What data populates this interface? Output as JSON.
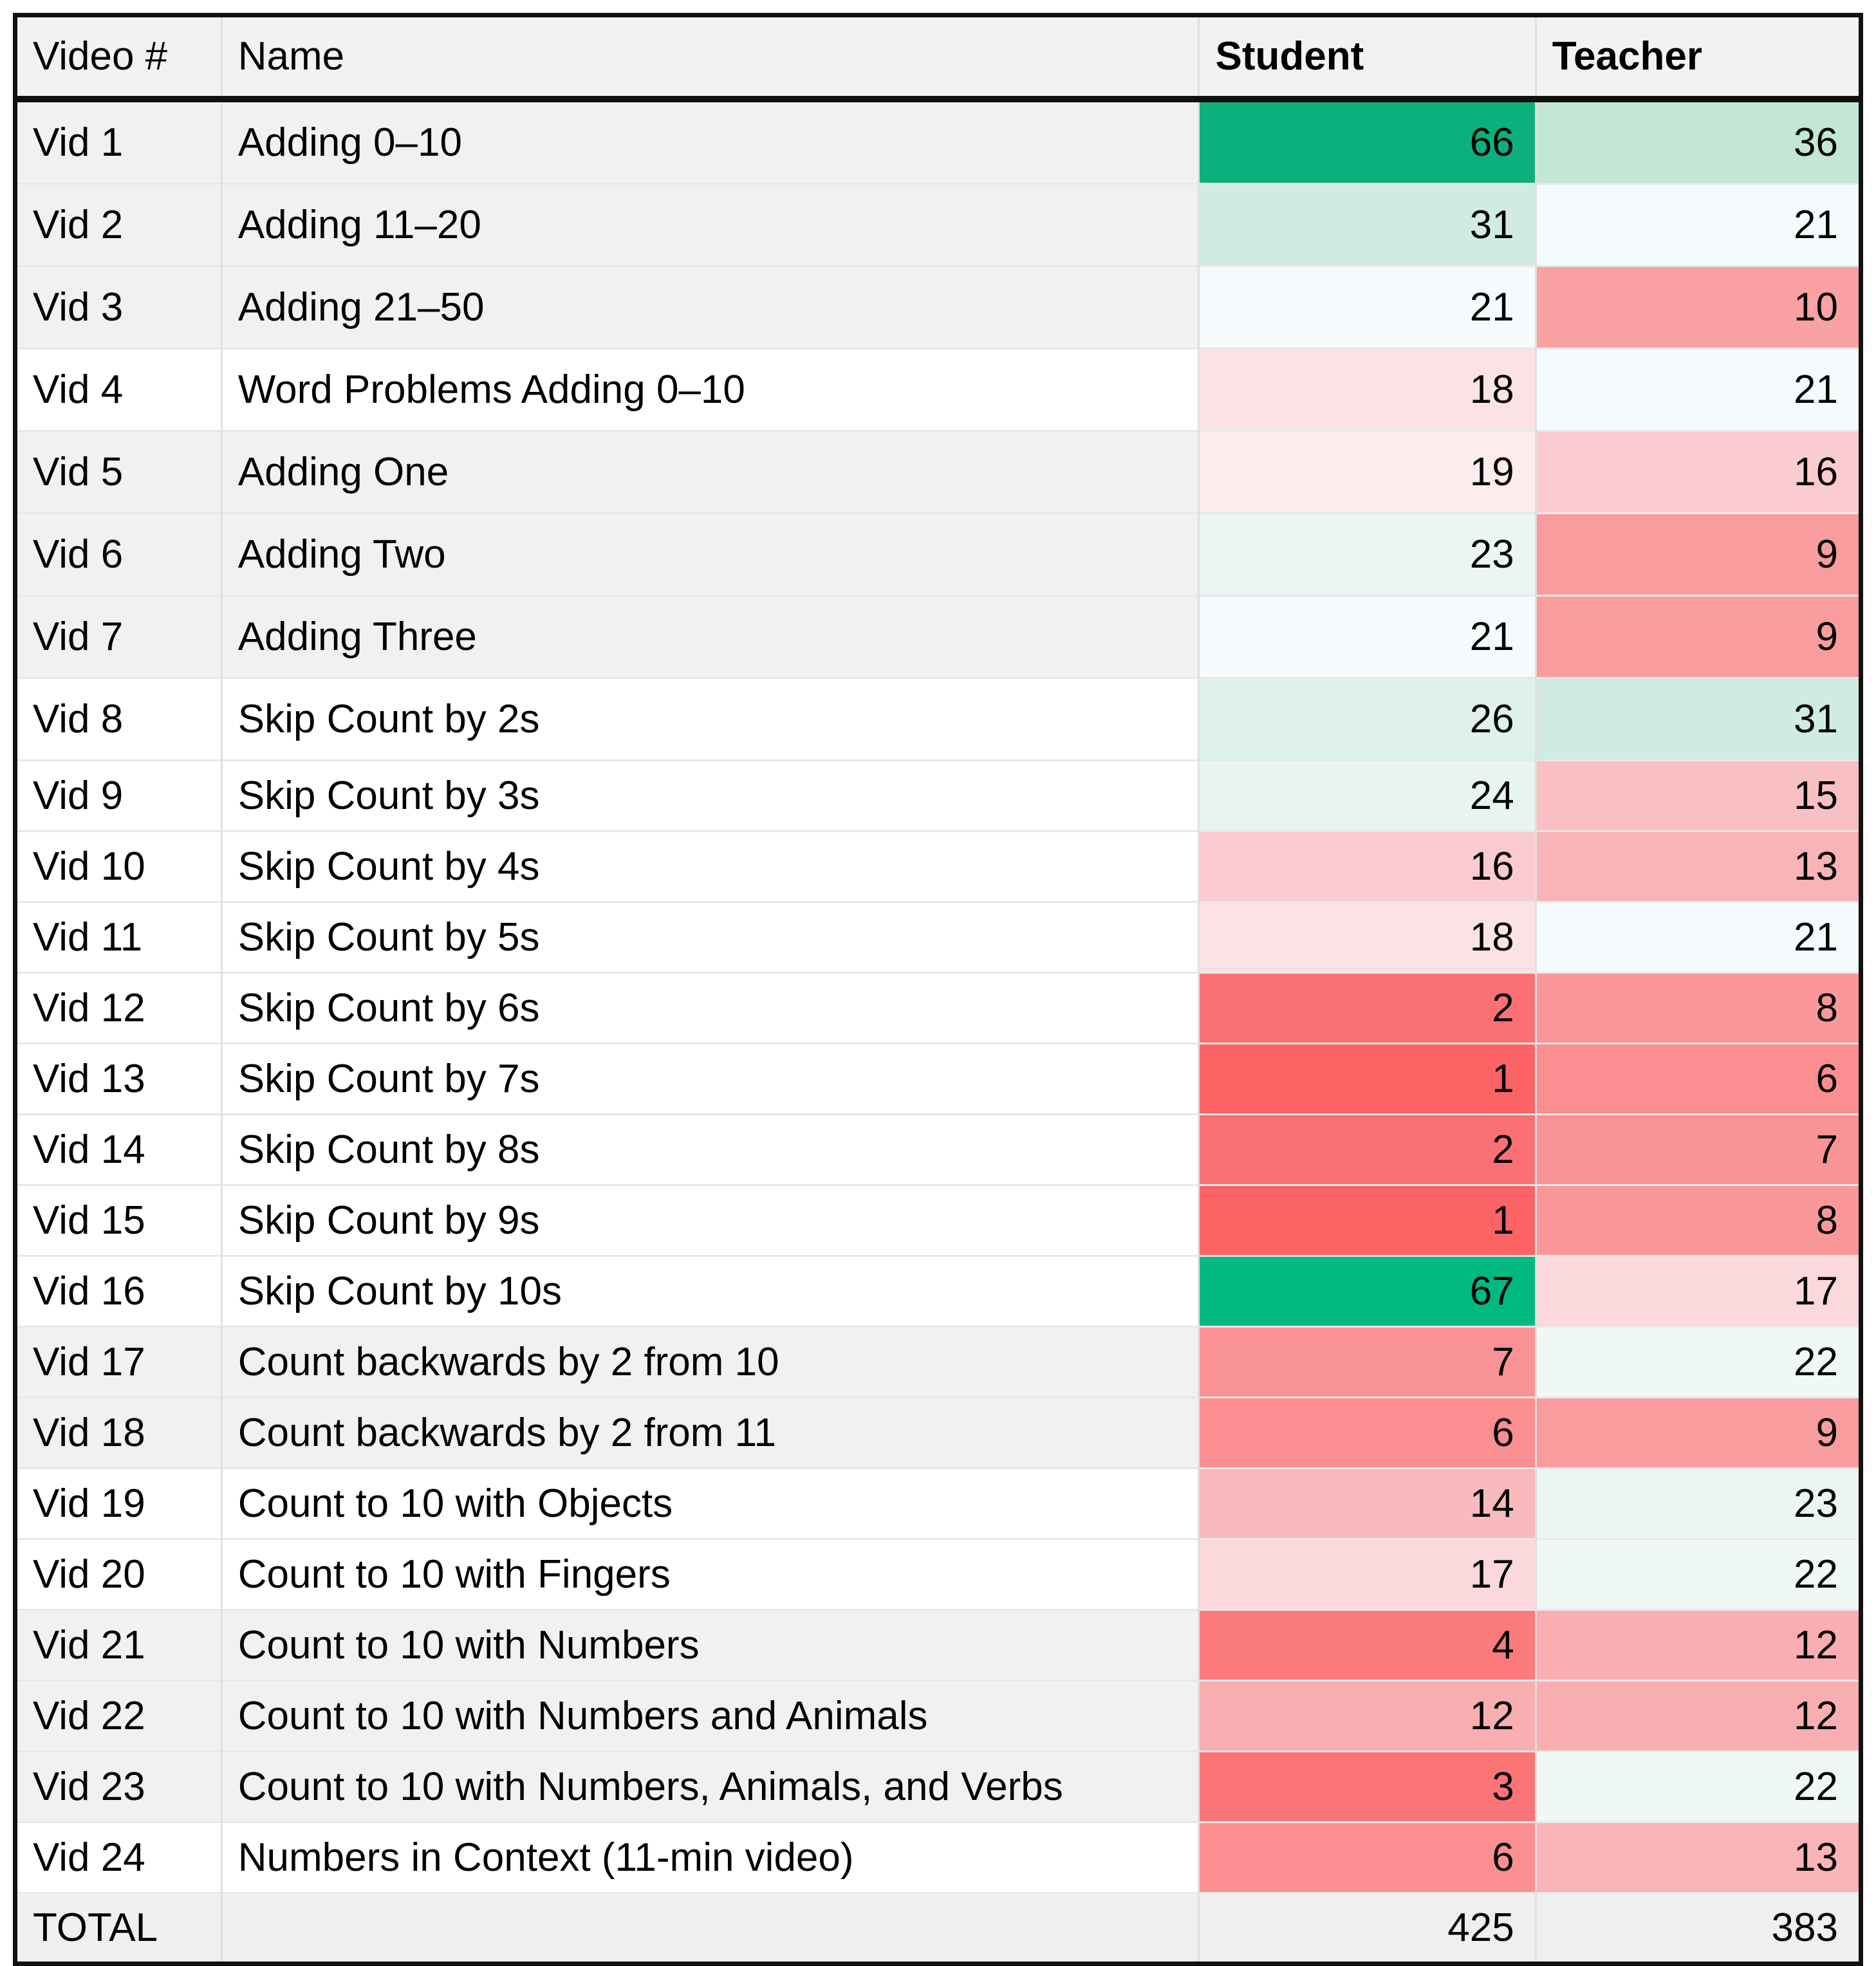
{
  "table": {
    "columns": [
      {
        "label": "Video #",
        "bold": false
      },
      {
        "label": "Name",
        "bold": false
      },
      {
        "label": "Student",
        "bold": true
      },
      {
        "label": "Teacher",
        "bold": true
      }
    ],
    "header_bg": "#f2f2f2",
    "rows": [
      {
        "video": "Vid 1",
        "name": "Adding 0–10",
        "student": 66,
        "teacher": 36,
        "row_bg": "#f1f1f1",
        "student_bg": "#0cb07c",
        "teacher_bg": "#c2e7d5"
      },
      {
        "video": "Vid 2",
        "name": "Adding 11–20",
        "student": 31,
        "teacher": 21,
        "row_bg": "#f1f1f1",
        "student_bg": "#d0ece0",
        "teacher_bg": "#f5fafc"
      },
      {
        "video": "Vid 3",
        "name": "Adding 21–50",
        "student": 21,
        "teacher": 10,
        "row_bg": "#f1f1f1",
        "student_bg": "#f5fafc",
        "teacher_bg": "#f9a1a3"
      },
      {
        "video": "Vid 4",
        "name": "Word Problems Adding 0–10",
        "student": 18,
        "teacher": 21,
        "row_bg": "#ffffff",
        "student_bg": "#fbe2e5",
        "teacher_bg": "#f5fafc"
      },
      {
        "video": "Vid 5",
        "name": "Adding One",
        "student": 19,
        "teacher": 16,
        "row_bg": "#f1f1f1",
        "student_bg": "#fdecee",
        "teacher_bg": "#faccd0"
      },
      {
        "video": "Vid 6",
        "name": "Adding Two",
        "student": 23,
        "teacher": 9,
        "row_bg": "#f1f1f1",
        "student_bg": "#ebf6f3",
        "teacher_bg": "#f99c9e"
      },
      {
        "video": "Vid 7",
        "name": "Adding Three",
        "student": 21,
        "teacher": 9,
        "row_bg": "#f1f1f1",
        "student_bg": "#f5fafc",
        "teacher_bg": "#f99c9e"
      },
      {
        "video": "Vid 8",
        "name": "Skip Count by 2s",
        "student": 26,
        "teacher": 31,
        "row_bg": "#ffffff",
        "student_bg": "#dff2ea",
        "teacher_bg": "#d0ece0"
      },
      {
        "video": "Vid 9",
        "name": "Skip Count by 3s",
        "student": 24,
        "teacher": 15,
        "row_bg": "#ffffff",
        "student_bg": "#e7f4f0",
        "teacher_bg": "#f9c0c3"
      },
      {
        "video": "Vid 10",
        "name": "Skip Count by 4s",
        "student": 16,
        "teacher": 13,
        "row_bg": "#ffffff",
        "student_bg": "#faccd0",
        "teacher_bg": "#f9b4b7"
      },
      {
        "video": "Vid 11",
        "name": "Skip Count by 5s",
        "student": 18,
        "teacher": 21,
        "row_bg": "#ffffff",
        "student_bg": "#fbe2e5",
        "teacher_bg": "#f5fafc"
      },
      {
        "video": "Vid 12",
        "name": "Skip Count by 6s",
        "student": 2,
        "teacher": 8,
        "row_bg": "#ffffff",
        "student_bg": "#fb7173",
        "teacher_bg": "#fa9899"
      },
      {
        "video": "Vid 13",
        "name": "Skip Count by 7s",
        "student": 1,
        "teacher": 6,
        "row_bg": "#ffffff",
        "student_bg": "#fb6365",
        "teacher_bg": "#fa8e90"
      },
      {
        "video": "Vid 14",
        "name": "Skip Count by 8s",
        "student": 2,
        "teacher": 7,
        "row_bg": "#ffffff",
        "student_bg": "#fb7173",
        "teacher_bg": "#fa9395"
      },
      {
        "video": "Vid 15",
        "name": "Skip Count by 9s",
        "student": 1,
        "teacher": 8,
        "row_bg": "#ffffff",
        "student_bg": "#fb6365",
        "teacher_bg": "#fa9899"
      },
      {
        "video": "Vid 16",
        "name": "Skip Count by 10s",
        "student": 67,
        "teacher": 17,
        "row_bg": "#ffffff",
        "student_bg": "#00b981",
        "teacher_bg": "#fbd8db"
      },
      {
        "video": "Vid 17",
        "name": "Count backwards by 2 from 10",
        "student": 7,
        "teacher": 22,
        "row_bg": "#f1f1f1",
        "student_bg": "#fa9395",
        "teacher_bg": "#eff8f5"
      },
      {
        "video": "Vid 18",
        "name": "Count backwards by 2 from 11",
        "student": 6,
        "teacher": 9,
        "row_bg": "#f1f1f1",
        "student_bg": "#fa8e90",
        "teacher_bg": "#f99c9e"
      },
      {
        "video": "Vid 19",
        "name": "Count to 10 with Objects",
        "student": 14,
        "teacher": 23,
        "row_bg": "#ffffff",
        "student_bg": "#f9babd",
        "teacher_bg": "#ebf6f3"
      },
      {
        "video": "Vid 20",
        "name": "Count to 10 with Fingers",
        "student": 17,
        "teacher": 22,
        "row_bg": "#ffffff",
        "student_bg": "#fbd8db",
        "teacher_bg": "#eff8f5"
      },
      {
        "video": "Vid 21",
        "name": "Count to 10 with Numbers",
        "student": 4,
        "teacher": 12,
        "row_bg": "#f1f1f1",
        "student_bg": "#fb7b7d",
        "teacher_bg": "#f9aeb1"
      },
      {
        "video": "Vid 22",
        "name": "Count to 10 with Numbers and Animals",
        "student": 12,
        "teacher": 12,
        "row_bg": "#f1f1f1",
        "student_bg": "#f9aeb1",
        "teacher_bg": "#f9aeb1"
      },
      {
        "video": "Vid 23",
        "name": "Count to 10 with Numbers, Animals, and Verbs",
        "student": 3,
        "teacher": 22,
        "row_bg": "#f1f1f1",
        "student_bg": "#fb7577",
        "teacher_bg": "#eff8f5"
      },
      {
        "video": "Vid 24",
        "name": "Numbers in Context (11-min video)",
        "student": 6,
        "teacher": 13,
        "row_bg": "#ffffff",
        "student_bg": "#fa8e90",
        "teacher_bg": "#f9b4b7"
      }
    ],
    "total": {
      "label": "TOTAL",
      "name": "",
      "student": 425,
      "teacher": 383,
      "bg": "#efefef"
    }
  },
  "colors": {
    "max_green": "#00b981",
    "min_red": "#fb6365",
    "mid_white": "#f5fafc",
    "header_bg": "#f2f2f2",
    "band_row_bg": "#f1f1f1",
    "total_row_bg": "#efefef",
    "table_border": "#111111"
  }
}
